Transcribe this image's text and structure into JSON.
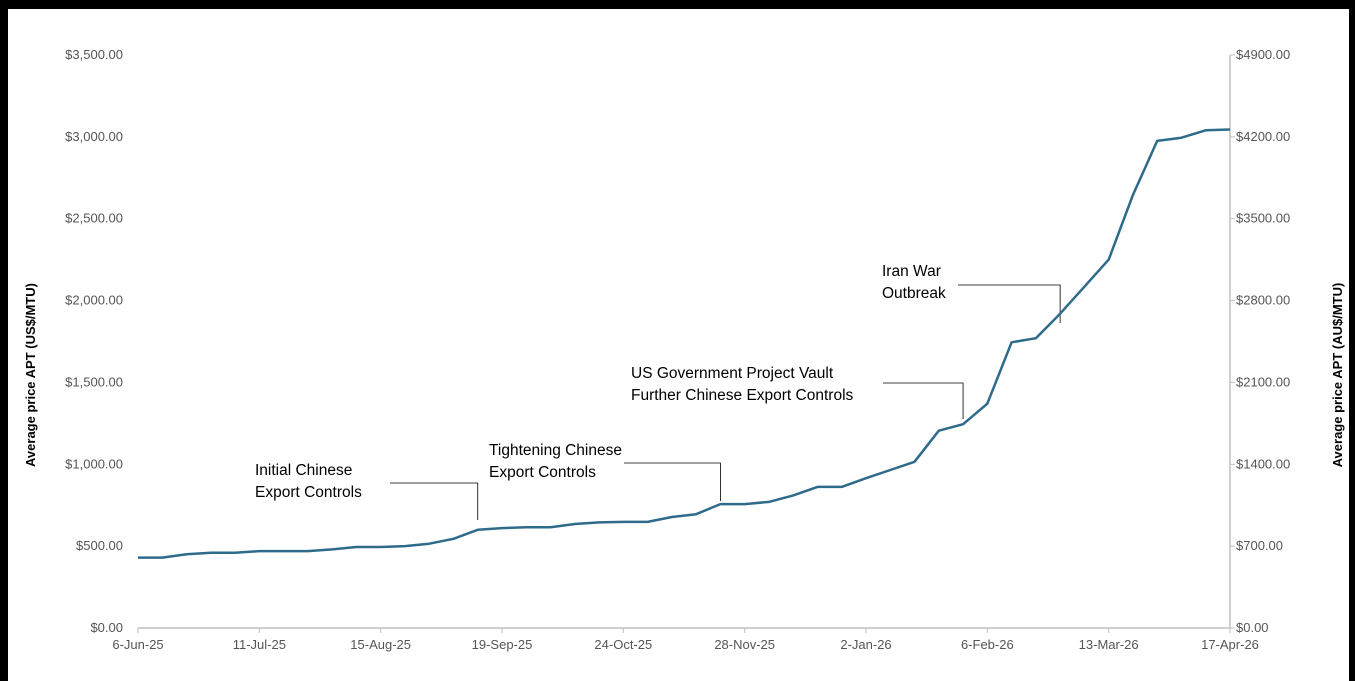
{
  "chart_data": {
    "type": "line",
    "title": "",
    "ylabel_left": "Average price APT (US$/MTU)",
    "ylabel_right": "Average price APT (AU$/MTU)",
    "x_tick_labels": [
      "6-Jun-25",
      "11-Jul-25",
      "15-Aug-25",
      "19-Sep-25",
      "24-Oct-25",
      "28-Nov-25",
      "2-Jan-26",
      "6-Feb-26",
      "13-Mar-26",
      "17-Apr-26"
    ],
    "ylim_left": [
      0,
      3500
    ],
    "ylim_right": [
      0,
      4900
    ],
    "y_left_ticks": [
      "$0.00",
      "$500.00",
      "$1,000.00",
      "$1,500.00",
      "$2,000.00",
      "$2,500.00",
      "$3,000.00",
      "$3,500.00"
    ],
    "y_right_ticks": [
      "$0.00",
      "$700.00",
      "$1400.00",
      "$2100.00",
      "$2800.00",
      "$3500.00",
      "$4200.00",
      "$4900.00"
    ],
    "line_color": "#2e6b8a",
    "grid": false,
    "legend": "none",
    "series": [
      {
        "x": [
          "2025-06-06",
          "2025-06-13",
          "2025-06-20",
          "2025-06-27",
          "2025-07-04",
          "2025-07-11",
          "2025-07-18",
          "2025-07-25",
          "2025-08-01",
          "2025-08-08",
          "2025-08-15",
          "2025-08-22",
          "2025-08-29",
          "2025-09-05",
          "2025-09-12",
          "2025-09-19",
          "2025-09-26",
          "2025-10-03",
          "2025-10-10",
          "2025-10-17",
          "2025-10-24",
          "2025-10-31",
          "2025-11-07",
          "2025-11-14",
          "2025-11-21",
          "2025-11-28",
          "2025-12-05",
          "2025-12-12",
          "2025-12-19",
          "2025-12-26",
          "2026-01-02",
          "2026-01-09",
          "2026-01-16",
          "2026-01-23",
          "2026-01-30",
          "2026-02-06",
          "2026-02-13",
          "2026-02-20",
          "2026-02-27",
          "2026-03-06",
          "2026-03-13",
          "2026-03-20",
          "2026-03-27",
          "2026-04-03",
          "2026-04-10",
          "2026-04-17"
        ],
        "values": [
          430,
          430,
          450,
          460,
          460,
          470,
          470,
          470,
          480,
          495,
          495,
          500,
          515,
          545,
          600,
          610,
          615,
          615,
          635,
          645,
          648,
          648,
          678,
          695,
          757,
          757,
          770,
          810,
          862,
          862,
          915,
          965,
          1015,
          1205,
          1245,
          1370,
          1745,
          1770,
          1920,
          2085,
          2250,
          2645,
          2975,
          2995,
          3040,
          3045
        ]
      }
    ],
    "annotations": [
      {
        "lines": [
          "Initial Chinese",
          "Export Controls"
        ],
        "date": "2025-09-12"
      },
      {
        "lines": [
          "Tightening Chinese",
          "Export Controls"
        ],
        "date": "2025-11-21"
      },
      {
        "lines": [
          "US Government Project Vault",
          "Further Chinese Export Controls"
        ],
        "date": "2026-01-30"
      },
      {
        "lines": [
          "Iran War",
          "Outbreak"
        ],
        "date": "2026-02-27"
      }
    ]
  }
}
